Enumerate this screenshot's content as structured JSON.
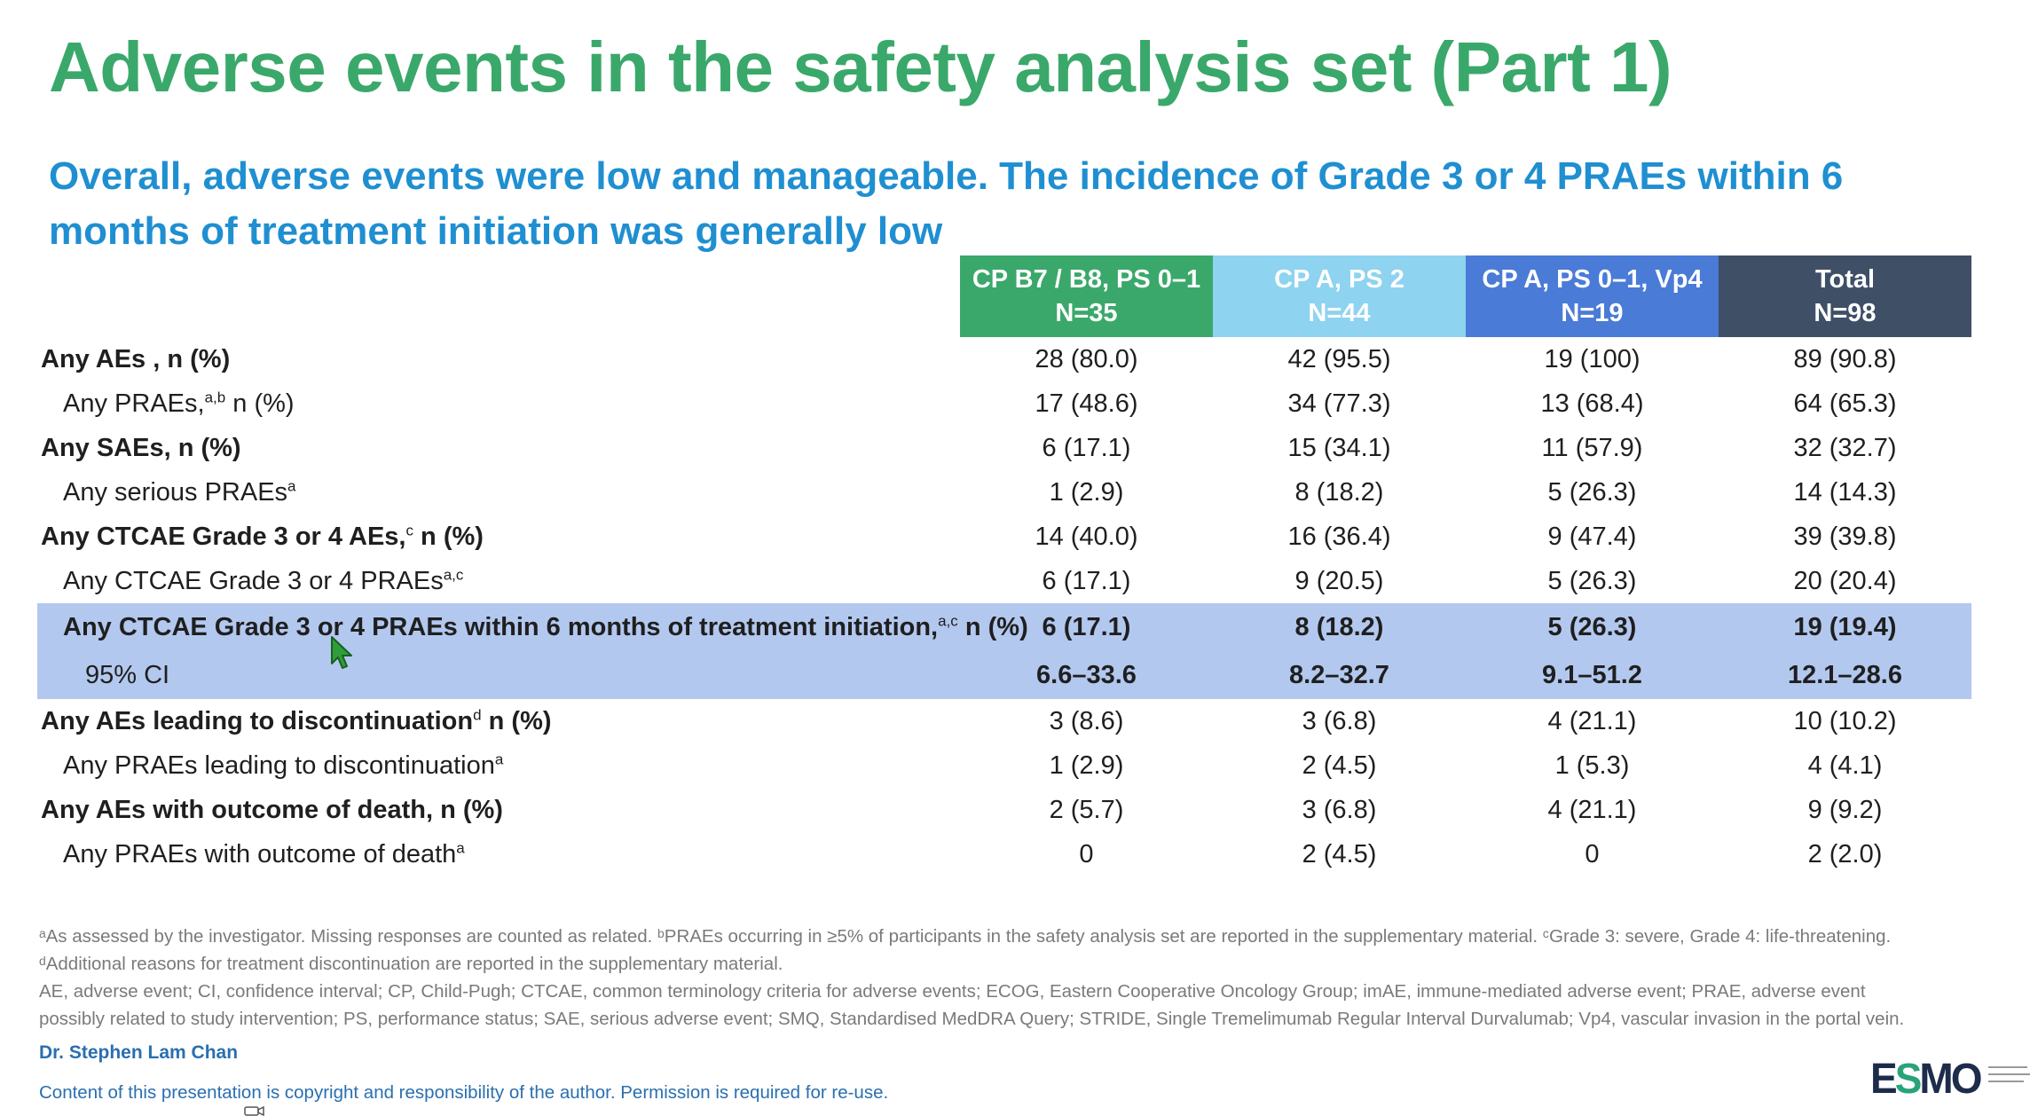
{
  "title": "Adverse events in the safety analysis set (Part 1)",
  "subtitle": "Overall, adverse events were low and manageable. The incidence of Grade 3 or 4 PRAEs within 6 months of treatment initiation was generally low",
  "colors": {
    "title": "#3aa86a",
    "subtitle": "#1f8fd1",
    "header_1": "#3aa86a",
    "header_2": "#8ed3f0",
    "header_3": "#4a7bd6",
    "header_4": "#3e4f66",
    "highlight_row": "#b3c8ef"
  },
  "table": {
    "headers": [
      {
        "line1": "CP B7 / B8, PS 0–1",
        "line2": "N=35"
      },
      {
        "line1": "CP A, PS 2",
        "line2": "N=44"
      },
      {
        "line1": "CP A, PS 0–1, Vp4",
        "line2": "N=19"
      },
      {
        "line1": "Total",
        "line2": "N=98"
      }
    ],
    "rows": [
      {
        "label": "Any AEs , n (%)",
        "sup": "",
        "label_after": "",
        "values": [
          "28 (80.0)",
          "42 (95.5)",
          "19 (100)",
          "89 (90.8)"
        ]
      },
      {
        "label": "Any PRAEs,",
        "sup": "a,b",
        "label_after": " n (%)",
        "values": [
          "17 (48.6)",
          "34 (77.3)",
          "13 (68.4)",
          "64 (65.3)"
        ]
      },
      {
        "label": "Any SAEs, n (%)",
        "sup": "",
        "label_after": "",
        "values": [
          "6 (17.1)",
          "15 (34.1)",
          "11 (57.9)",
          "32 (32.7)"
        ]
      },
      {
        "label": "Any serious PRAEs",
        "sup": "a",
        "label_after": "",
        "values": [
          "1 (2.9)",
          "8 (18.2)",
          "5 (26.3)",
          "14 (14.3)"
        ]
      },
      {
        "label": "Any CTCAE Grade 3 or 4 AEs,",
        "sup": "c",
        "label_after": " n (%)",
        "values": [
          "14 (40.0)",
          "16 (36.4)",
          "9 (47.4)",
          "39 (39.8)"
        ]
      },
      {
        "label": "Any CTCAE Grade 3 or 4 PRAEs",
        "sup": "a,c",
        "label_after": "",
        "values": [
          "6 (17.1)",
          "9 (20.5)",
          "5 (26.3)",
          "20 (20.4)"
        ]
      },
      {
        "label": "Any CTCAE Grade 3 or 4 PRAEs within 6 months of treatment initiation,",
        "sup": "a,c",
        "label_after": " n (%)",
        "values": [
          "6 (17.1)",
          "8 (18.2)",
          "5 (26.3)",
          "19 (19.4)"
        ]
      },
      {
        "label": "95% CI",
        "sup": "",
        "label_after": "",
        "values": [
          "6.6–33.6",
          "8.2–32.7",
          "9.1–51.2",
          "12.1–28.6"
        ]
      },
      {
        "label": "Any AEs leading to discontinuation",
        "sup": "d",
        "label_after": " n (%)",
        "values": [
          "3 (8.6)",
          "3 (6.8)",
          "4 (21.1)",
          "10 (10.2)"
        ]
      },
      {
        "label": "Any PRAEs leading to discontinuation",
        "sup": "a",
        "label_after": "",
        "values": [
          "1 (2.9)",
          "2 (4.5)",
          "1 (5.3)",
          "4 (4.1)"
        ]
      },
      {
        "label": "Any AEs with outcome of death, n (%)",
        "sup": "",
        "label_after": "",
        "values": [
          "2 (5.7)",
          "3 (6.8)",
          "4 (21.1)",
          "9 (9.2)"
        ]
      },
      {
        "label": "Any PRAEs with outcome of death",
        "sup": "a",
        "label_after": "",
        "values": [
          "0",
          "2 (4.5)",
          "0",
          "2 (2.0)"
        ]
      }
    ]
  },
  "footnotes": {
    "line1": "ᵃAs assessed by the investigator. Missing responses are counted as related. ᵇPRAEs occurring in ≥5% of participants in the safety analysis set are reported in the supplementary material. ᶜGrade 3: severe, Grade 4: life-threatening.",
    "line2": "ᵈAdditional reasons for treatment discontinuation are reported in the supplementary material.",
    "line3": "AE, adverse event; CI, confidence interval; CP, Child-Pugh; CTCAE, common terminology criteria for adverse events; ECOG, Eastern Cooperative Oncology Group; imAE, immune-mediated adverse event; PRAE, adverse event",
    "line4": "possibly related to study intervention; PS, performance status; SAE, serious adverse event; SMQ, Standardised MedDRA Query; STRIDE, Single Tremelimumab Regular Interval Durvalumab; Vp4, vascular invasion in the portal vein."
  },
  "author": "Dr. Stephen Lam Chan",
  "copyright": "Content of this presentation is copyright and responsibility of the author. Permission is required for re-use.",
  "logo": {
    "text_e": "E",
    "text_s": "S",
    "text_mo": "MO"
  },
  "icons": [
    "mouse-pointer-icon",
    "camera-icon"
  ]
}
